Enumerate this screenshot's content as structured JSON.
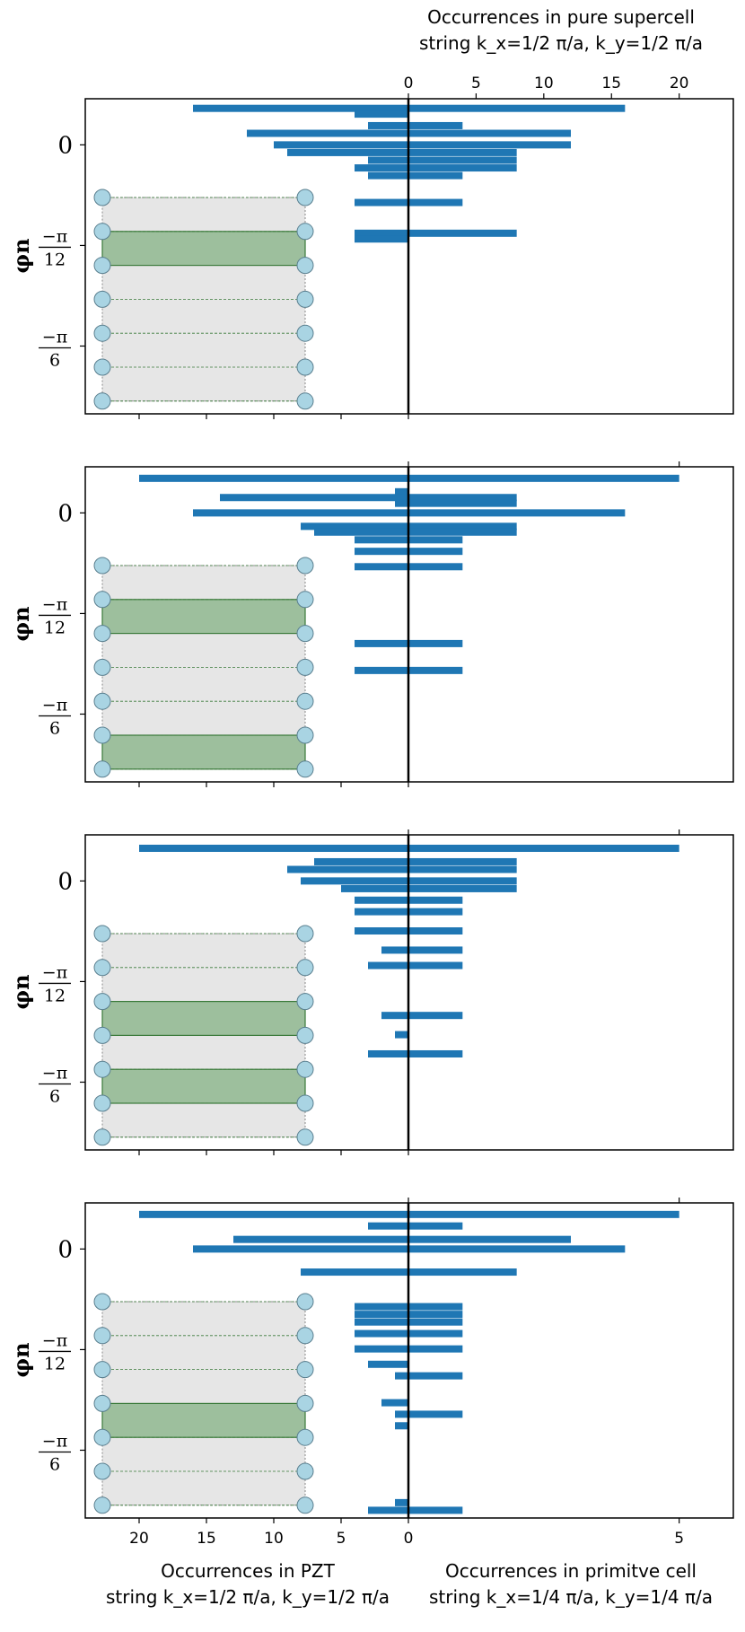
{
  "top_axis": {
    "title_line1": "Occurrences in pure supercell",
    "title_line2": "string k_x=1/2 π/a, k_y=1/2 π/a",
    "ticks": [
      0,
      5,
      10,
      15,
      20
    ]
  },
  "bottom_left_axis": {
    "title_line1": "Occurrences in PZT",
    "title_line2": "string k_x=1/2 π/a, k_y=1/2 π/a",
    "ticks": [
      20,
      15,
      10,
      5,
      0
    ]
  },
  "bottom_right_axis": {
    "title_line1": "Occurrences in primitve cell",
    "title_line2": "string k_x=1/4 π/a, k_y=1/4 π/a",
    "ticks": [
      5
    ]
  },
  "y_axis": {
    "label": "φn",
    "tick_labels": [
      "0",
      "−π/12",
      "−π/6"
    ],
    "tick_values": [
      0,
      -0.2618,
      -0.5236
    ]
  },
  "colors": {
    "bar": "#1f77b4",
    "inset_bg": "#e6e6e6",
    "inset_band": "#9dbf9d",
    "inset_node": "#a9d4e3",
    "inset_line": "#3a7a3a",
    "axis": "#000000"
  },
  "chart_data": [
    {
      "type": "bar",
      "orientation": "horizontal",
      "panel": 1,
      "ylim": [
        -0.7,
        0.12
      ],
      "left_xlim": [
        0,
        24
      ],
      "right_xlim": [
        0,
        24
      ],
      "right_series": "pure supercell",
      "bars": [
        {
          "y": 0.095,
          "left": 16,
          "right": 16
        },
        {
          "y": 0.08,
          "left": 4,
          "right": 0
        },
        {
          "y": 0.05,
          "left": 3,
          "right": 4
        },
        {
          "y": 0.03,
          "left": 12,
          "right": 12
        },
        {
          "y": 0.0,
          "left": 10,
          "right": 12
        },
        {
          "y": -0.02,
          "left": 9,
          "right": 8
        },
        {
          "y": -0.04,
          "left": 3,
          "right": 8
        },
        {
          "y": -0.06,
          "left": 4,
          "right": 8
        },
        {
          "y": -0.08,
          "left": 3,
          "right": 4
        },
        {
          "y": -0.15,
          "left": 4,
          "right": 4
        },
        {
          "y": -0.23,
          "left": 4,
          "right": 8
        },
        {
          "y": -0.245,
          "left": 4,
          "right": 0
        }
      ],
      "inset": {
        "nodes_per_side": 7,
        "highlighted_bands": [
          1
        ]
      }
    },
    {
      "type": "bar",
      "orientation": "horizontal",
      "panel": 2,
      "ylim": [
        -0.7,
        0.12
      ],
      "left_xlim": [
        0,
        24
      ],
      "right_xlim": [
        0,
        6
      ],
      "right_series": "primitive cell",
      "bars": [
        {
          "y": 0.09,
          "left": 20,
          "right": 5
        },
        {
          "y": 0.055,
          "left": 1,
          "right": 0
        },
        {
          "y": 0.04,
          "left": 14,
          "right": 2
        },
        {
          "y": 0.025,
          "left": 1,
          "right": 2
        },
        {
          "y": 0.0,
          "left": 16,
          "right": 4
        },
        {
          "y": -0.035,
          "left": 8,
          "right": 2
        },
        {
          "y": -0.05,
          "left": 7,
          "right": 2
        },
        {
          "y": -0.07,
          "left": 4,
          "right": 1
        },
        {
          "y": -0.1,
          "left": 4,
          "right": 1
        },
        {
          "y": -0.14,
          "left": 4,
          "right": 1
        },
        {
          "y": -0.34,
          "left": 4,
          "right": 1
        },
        {
          "y": -0.41,
          "left": 4,
          "right": 1
        }
      ],
      "inset": {
        "nodes_per_side": 7,
        "highlighted_bands": [
          1,
          5
        ]
      }
    },
    {
      "type": "bar",
      "orientation": "horizontal",
      "panel": 3,
      "ylim": [
        -0.7,
        0.12
      ],
      "left_xlim": [
        0,
        24
      ],
      "right_xlim": [
        0,
        6
      ],
      "right_series": "primitive cell",
      "bars": [
        {
          "y": 0.085,
          "left": 20,
          "right": 5
        },
        {
          "y": 0.05,
          "left": 7,
          "right": 2
        },
        {
          "y": 0.03,
          "left": 9,
          "right": 2
        },
        {
          "y": 0.0,
          "left": 8,
          "right": 2
        },
        {
          "y": -0.02,
          "left": 5,
          "right": 2
        },
        {
          "y": -0.05,
          "left": 4,
          "right": 1
        },
        {
          "y": -0.08,
          "left": 4,
          "right": 1
        },
        {
          "y": -0.13,
          "left": 4,
          "right": 1
        },
        {
          "y": -0.18,
          "left": 2,
          "right": 1
        },
        {
          "y": -0.22,
          "left": 3,
          "right": 1
        },
        {
          "y": -0.35,
          "left": 2,
          "right": 1
        },
        {
          "y": -0.4,
          "left": 1,
          "right": 0
        },
        {
          "y": -0.45,
          "left": 3,
          "right": 1
        }
      ],
      "inset": {
        "nodes_per_side": 7,
        "highlighted_bands": [
          2,
          4
        ]
      }
    },
    {
      "type": "bar",
      "orientation": "horizontal",
      "panel": 4,
      "ylim": [
        -0.7,
        0.12
      ],
      "left_xlim": [
        0,
        24
      ],
      "right_xlim": [
        0,
        6
      ],
      "right_series": "primitive cell",
      "bars": [
        {
          "y": 0.09,
          "left": 20,
          "right": 5
        },
        {
          "y": 0.06,
          "left": 3,
          "right": 1
        },
        {
          "y": 0.025,
          "left": 13,
          "right": 3
        },
        {
          "y": 0.0,
          "left": 16,
          "right": 4
        },
        {
          "y": -0.06,
          "left": 8,
          "right": 2
        },
        {
          "y": -0.15,
          "left": 4,
          "right": 1
        },
        {
          "y": -0.17,
          "left": 4,
          "right": 1
        },
        {
          "y": -0.19,
          "left": 4,
          "right": 1
        },
        {
          "y": -0.22,
          "left": 4,
          "right": 1
        },
        {
          "y": -0.26,
          "left": 4,
          "right": 1
        },
        {
          "y": -0.3,
          "left": 3,
          "right": 0
        },
        {
          "y": -0.33,
          "left": 1,
          "right": 1
        },
        {
          "y": -0.4,
          "left": 2,
          "right": 0
        },
        {
          "y": -0.43,
          "left": 1,
          "right": 1
        },
        {
          "y": -0.46,
          "left": 1,
          "right": 0
        },
        {
          "y": -0.66,
          "left": 1,
          "right": 0
        },
        {
          "y": -0.68,
          "left": 3,
          "right": 1
        }
      ],
      "inset": {
        "nodes_per_side": 7,
        "highlighted_bands": [
          3
        ]
      }
    }
  ]
}
